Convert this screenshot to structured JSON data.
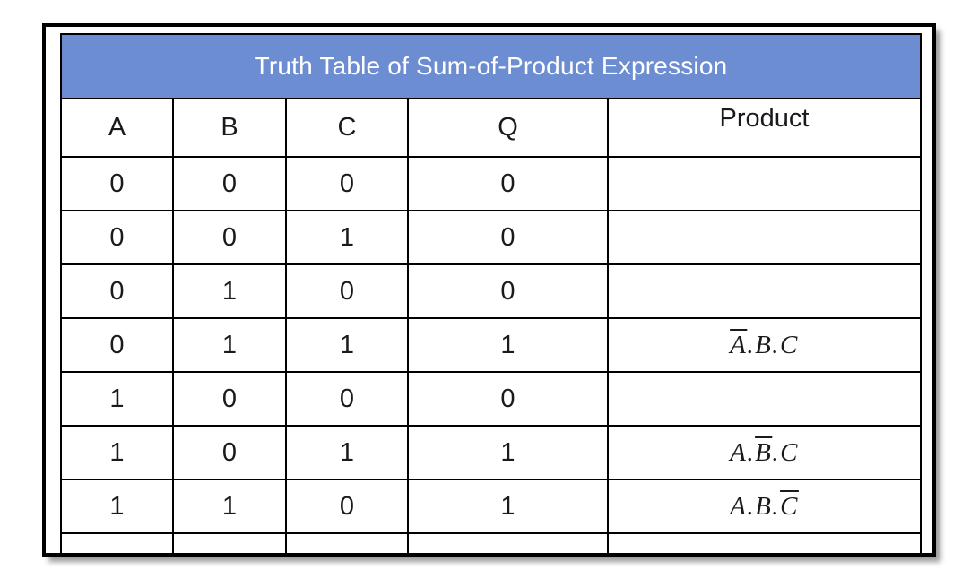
{
  "figure": {
    "title": "Truth Table of Sum-of-Product Expression",
    "columns": [
      "A",
      "B",
      "C",
      "Q",
      "Product"
    ],
    "rows": [
      {
        "cells": [
          "0",
          "0",
          "0",
          "0"
        ],
        "product": []
      },
      {
        "cells": [
          "0",
          "0",
          "1",
          "0"
        ],
        "product": []
      },
      {
        "cells": [
          "0",
          "1",
          "0",
          "0"
        ],
        "product": []
      },
      {
        "cells": [
          "0",
          "1",
          "1",
          "1"
        ],
        "product": [
          {
            "text": "A",
            "bar": true
          },
          {
            "text": ".B.C",
            "bar": false
          }
        ]
      },
      {
        "cells": [
          "1",
          "0",
          "0",
          "0"
        ],
        "product": []
      },
      {
        "cells": [
          "1",
          "0",
          "1",
          "1"
        ],
        "product": [
          {
            "text": "A.",
            "bar": false
          },
          {
            "text": "B",
            "bar": true
          },
          {
            "text": ".C",
            "bar": false
          }
        ]
      },
      {
        "cells": [
          "1",
          "1",
          "0",
          "1"
        ],
        "product": [
          {
            "text": "A.B.",
            "bar": false
          },
          {
            "text": "C",
            "bar": true
          }
        ]
      }
    ],
    "colors": {
      "header_fill": "#6C8DD1",
      "header_text": "#FFFFFF",
      "product_red": "#F00000",
      "grid": "#000000"
    }
  }
}
